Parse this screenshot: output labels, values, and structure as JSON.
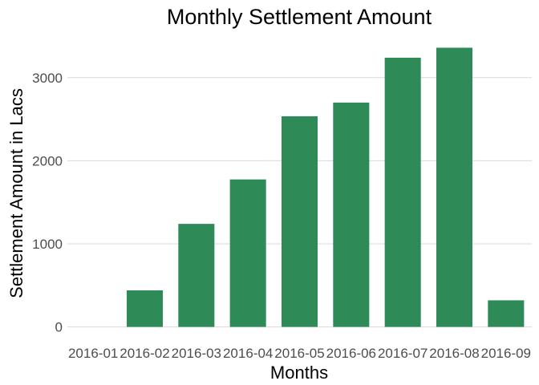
{
  "chart_data": {
    "type": "bar",
    "title": "Monthly Settlement Amount",
    "xlabel": "Months",
    "ylabel": "Settlement Amount in Lacs",
    "categories": [
      "2016-01",
      "2016-02",
      "2016-03",
      "2016-04",
      "2016-05",
      "2016-06",
      "2016-07",
      "2016-08",
      "2016-09"
    ],
    "values": [
      0,
      440,
      1240,
      1775,
      2535,
      2700,
      3240,
      3360,
      320
    ],
    "yticks": [
      0,
      1000,
      2000,
      3000
    ],
    "ylim": [
      -120,
      3500
    ],
    "grid": "horizontal major",
    "legend": "none",
    "bar_color": "#2e8b57"
  }
}
